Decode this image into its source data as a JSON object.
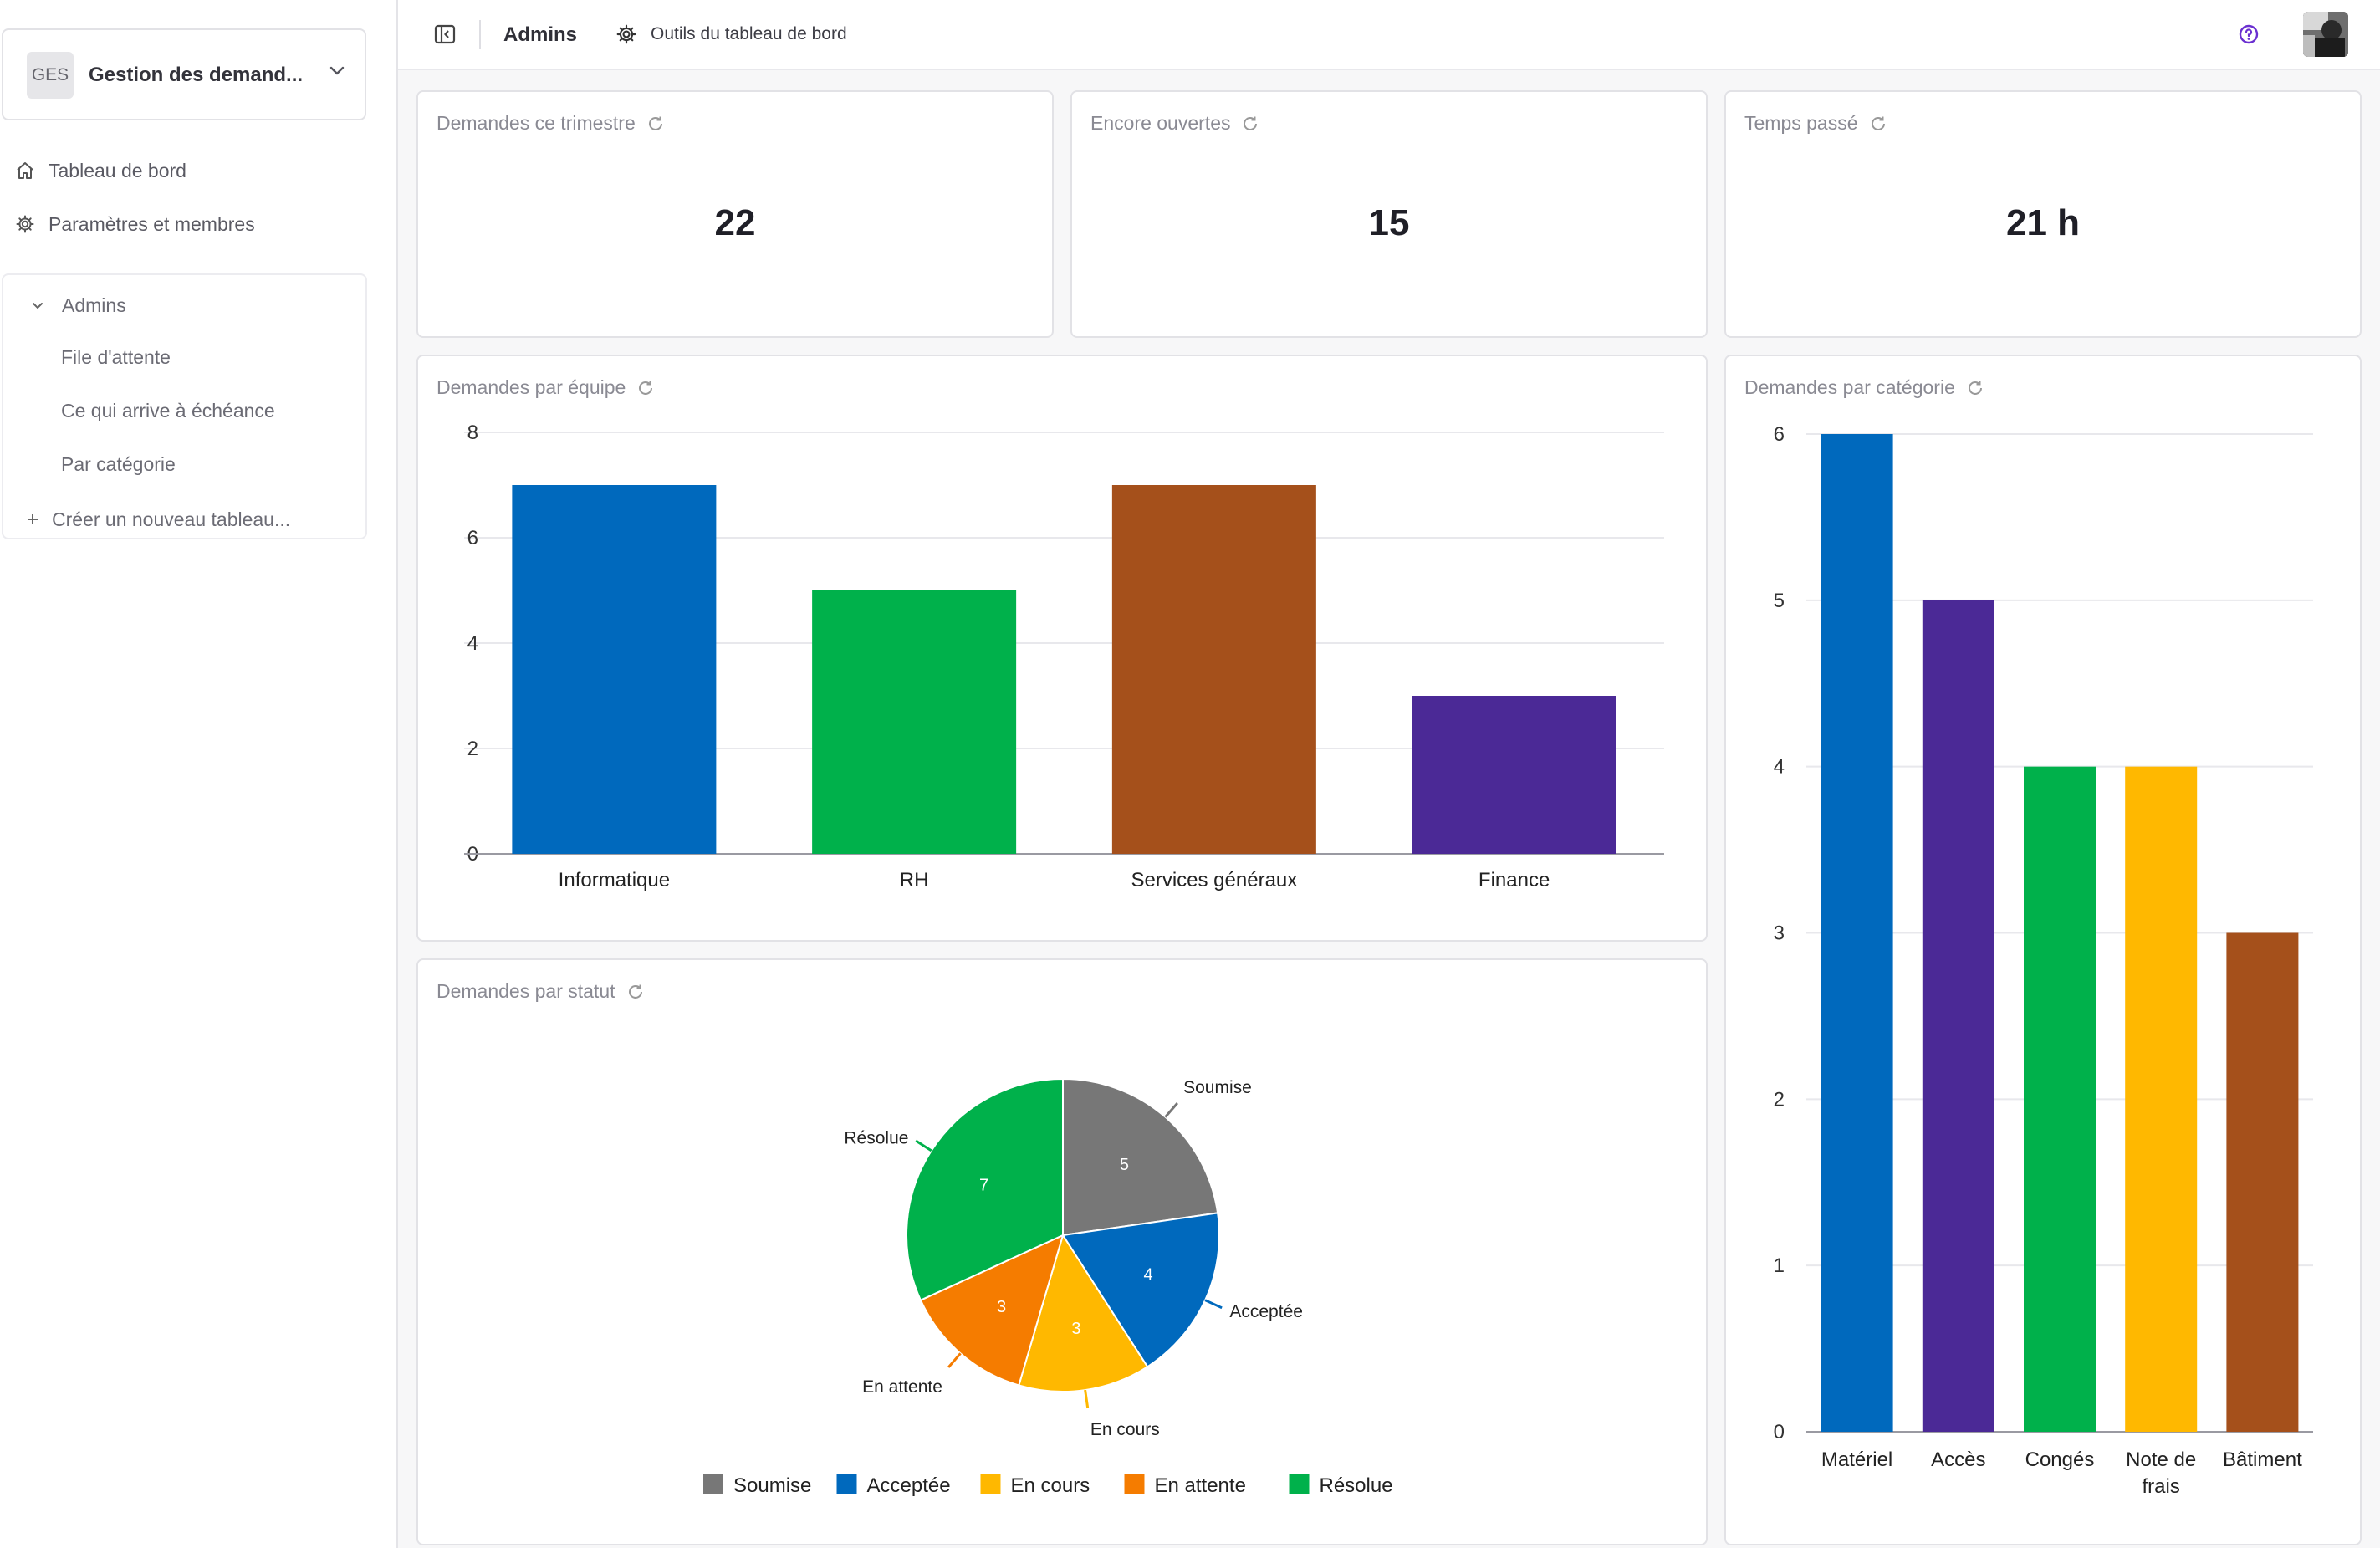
{
  "workspace": {
    "badge": "GES",
    "name": "Gestion des demand..."
  },
  "nav": [
    {
      "label": "Tableau de bord",
      "icon": "home-icon"
    },
    {
      "label": "Paramètres et membres",
      "icon": "gear-icon"
    }
  ],
  "group": {
    "name": "Admins",
    "items": [
      "File d'attente",
      "Ce qui arrive à échéance",
      "Par catégorie"
    ],
    "create_label": "Créer un nouveau tableau..."
  },
  "topbar": {
    "breadcrumb": "Admins",
    "tools_label": "Outils du tableau de bord"
  },
  "kpis": [
    {
      "title": "Demandes ce trimestre",
      "value": "22"
    },
    {
      "title": "Encore ouvertes",
      "value": "15"
    },
    {
      "title": "Temps passé",
      "value": "21 h"
    }
  ],
  "charts_titles": {
    "team": "Demandes par équipe",
    "status": "Demandes par statut",
    "category": "Demandes par catégorie"
  },
  "colors": {
    "blue": "#0069bd",
    "green": "#00b14b",
    "brown": "#a5501b",
    "purple": "#4b2996",
    "yellow": "#ffb800",
    "orange": "#f57c00",
    "gray": "#777777",
    "help": "#6a2fd0"
  },
  "chart_data": [
    {
      "type": "bar",
      "title": "Demandes par équipe",
      "categories": [
        "Informatique",
        "RH",
        "Services généraux",
        "Finance"
      ],
      "values": [
        7,
        5,
        7,
        3
      ],
      "colors": [
        "#0069bd",
        "#00b14b",
        "#a5501b",
        "#4b2996"
      ],
      "ylim": [
        0,
        8
      ],
      "yticks": [
        0,
        2,
        4,
        6,
        8
      ],
      "grid": true
    },
    {
      "type": "pie",
      "title": "Demandes par statut",
      "labels": [
        "Soumise",
        "Acceptée",
        "En cours",
        "En attente",
        "Résolue"
      ],
      "values": [
        5,
        4,
        3,
        3,
        7
      ],
      "colors": [
        "#777777",
        "#0069bd",
        "#ffb800",
        "#f57c00",
        "#00b14b"
      ],
      "legend": "bottom"
    },
    {
      "type": "bar",
      "title": "Demandes par catégorie",
      "categories": [
        "Matériel",
        "Accès",
        "Congés",
        "Note de frais",
        "Bâtiment"
      ],
      "category_lines": [
        [
          "Matériel"
        ],
        [
          "Accès"
        ],
        [
          "Congés"
        ],
        [
          "Note de",
          "frais"
        ],
        [
          "Bâtiment"
        ]
      ],
      "values": [
        6,
        5,
        4,
        4,
        3
      ],
      "colors": [
        "#0069bd",
        "#4b2996",
        "#00b14b",
        "#ffb800",
        "#a5501b"
      ],
      "ylim": [
        0,
        6
      ],
      "yticks": [
        0,
        1,
        2,
        3,
        4,
        5,
        6
      ],
      "grid": true
    }
  ]
}
